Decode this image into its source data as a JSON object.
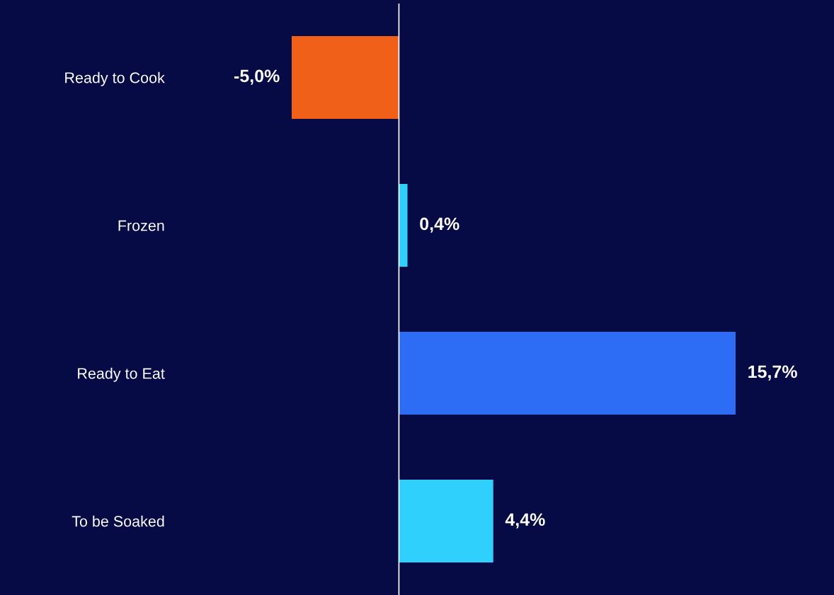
{
  "chart_data": {
    "type": "bar",
    "orientation": "horizontal",
    "categories": [
      "Ready to Cook",
      "Frozen",
      "Ready to Eat",
      "To be Soaked"
    ],
    "values": [
      -5.0,
      0.4,
      15.7,
      4.4
    ],
    "colors": [
      "#f06018",
      "#2fd0fc",
      "#2d6df6",
      "#2fd0fc"
    ],
    "value_labels": [
      "-5,0%",
      "0,4%",
      "15,7%",
      "4,4%"
    ],
    "tick_labels": "y",
    "grid": false,
    "ref_lines": [
      {
        "axis": "x",
        "value": 0,
        "color": "#ffffff"
      }
    ]
  }
}
